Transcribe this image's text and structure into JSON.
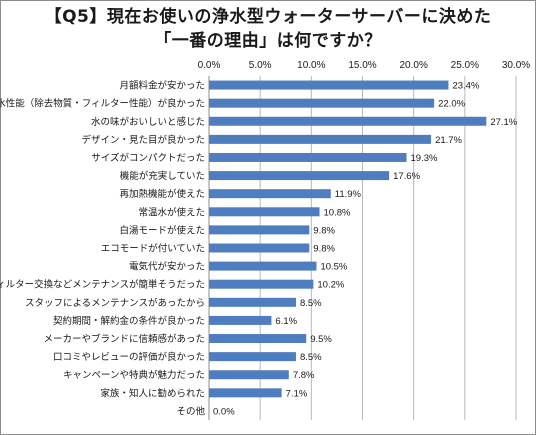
{
  "title": {
    "line1": "【Q5】現在お使いの浄水型ウォーターサーバーに決めた",
    "line2": "「一番の理由」は何ですか？"
  },
  "chart_data": {
    "type": "bar",
    "orientation": "horizontal",
    "title": "【Q5】現在お使いの浄水型ウォーターサーバーに決めた「一番の理由」は何ですか？",
    "xlabel": "",
    "ylabel": "",
    "xlim": [
      0,
      30
    ],
    "x_ticks": [
      "0.0%",
      "5.0%",
      "10.0%",
      "15.0%",
      "20.0%",
      "25.0%",
      "30.0%"
    ],
    "x_axis_position": "top",
    "grid": true,
    "bar_color": "#4f7ec0",
    "categories": [
      "月額料金が安かった",
      "浄水性能（除去物質・フィルター性能）が良かった",
      "水の味がおいしいと感じた",
      "デザイン・見た目が良かった",
      "サイズがコンパクトだった",
      "機能が充実していた",
      "再加熱機能が使えた",
      "常温水が使えた",
      "白湯モードが使えた",
      "エコモードが付いていた",
      "電気代が安かった",
      "フィルター交換などメンテナンスが簡単そうだった",
      "スタッフによるメンテナンスがあったから",
      "契約期間・解約金の条件が良かった",
      "メーカーやブランドに信頼感があった",
      "口コミやレビューの評価が良かった",
      "キャンペーンや特典が魅力だった",
      "家族・知人に勧められた",
      "その他"
    ],
    "values": [
      23.4,
      22.0,
      27.1,
      21.7,
      19.3,
      17.6,
      11.9,
      10.8,
      9.8,
      9.8,
      10.5,
      10.2,
      8.5,
      6.1,
      9.5,
      8.5,
      7.8,
      7.1,
      0.0
    ],
    "value_labels": [
      "23.4%",
      "22.0%",
      "27.1%",
      "21.7%",
      "19.3%",
      "17.6%",
      "11.9%",
      "10.8%",
      "9.8%",
      "9.8%",
      "10.5%",
      "10.2%",
      "8.5%",
      "6.1%",
      "9.5%",
      "8.5%",
      "7.8%",
      "7.1%",
      "0.0%"
    ]
  }
}
